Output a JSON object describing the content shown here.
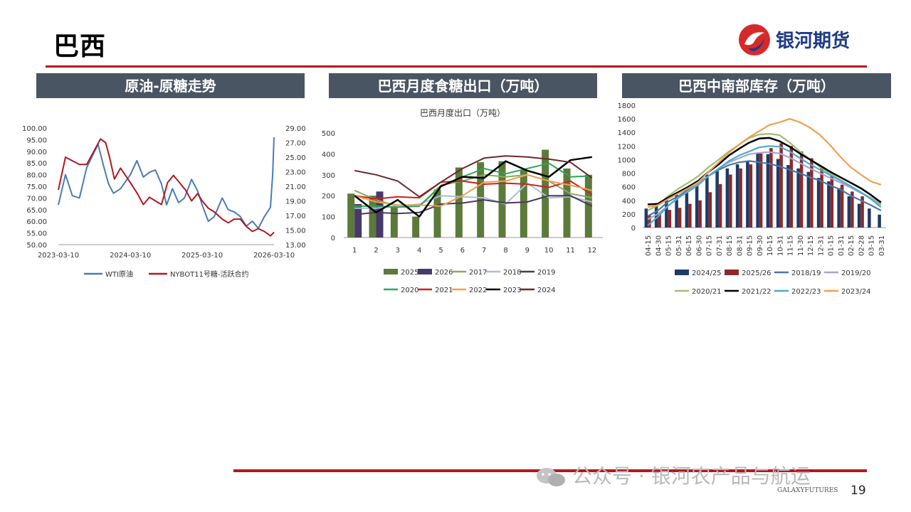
{
  "page": {
    "title": "巴西",
    "logo_text": "银河期货",
    "page_number": "19",
    "watermark": "公众号 · 银河农产品与航运",
    "footer_brand": "GALAXYFUTURES",
    "brand_red": "#b3171f",
    "header_gray": "#4a5563"
  },
  "panels": [
    {
      "heading": "原油-原糖走势"
    },
    {
      "heading": "巴西月度食糖出口（万吨）"
    },
    {
      "heading": "巴西中南部库存（万吨）"
    }
  ],
  "chart_data": [
    {
      "type": "line",
      "title": "",
      "x_ticks": [
        "2023-03-10",
        "2024-03-10",
        "2025-03-10",
        "2026-03-10"
      ],
      "x_domain": [
        "2023-03-10",
        "2026-03-10"
      ],
      "y_left": {
        "ylim": [
          50,
          100
        ],
        "ticks": [
          "100.00",
          "95.00",
          "90.00",
          "85.00",
          "80.00",
          "75.00",
          "70.00",
          "65.00",
          "60.00",
          "55.00",
          "50.00"
        ]
      },
      "y_right": {
        "ylim": [
          13,
          29
        ],
        "ticks": [
          "29.00",
          "27.00",
          "25.00",
          "23.00",
          "21.00",
          "19.00",
          "17.00",
          "15.00",
          "13.00"
        ]
      },
      "legend": "bottom",
      "series": [
        {
          "name": "WTI原油",
          "axis": "left",
          "color": "#4a7bb5",
          "x": [
            "2023-03-10",
            "2023-04-15",
            "2023-05-20",
            "2023-06-25",
            "2023-08-01",
            "2023-09-10",
            "2023-09-28",
            "2023-10-25",
            "2023-11-20",
            "2023-12-15",
            "2024-01-20",
            "2024-03-10",
            "2024-04-12",
            "2024-05-15",
            "2024-06-15",
            "2024-07-15",
            "2024-08-15",
            "2024-09-10",
            "2024-10-10",
            "2024-11-10",
            "2024-12-10",
            "2025-01-15",
            "2025-02-15",
            "2025-03-10",
            "2025-04-10",
            "2025-05-10",
            "2025-06-20",
            "2025-07-20",
            "2025-08-20",
            "2025-09-20",
            "2025-10-20",
            "2025-11-20",
            "2025-12-20",
            "2026-01-20",
            "2026-02-20",
            "2026-03-03",
            "2026-03-10"
          ],
          "y": [
            67,
            80,
            71,
            70,
            83,
            90,
            93,
            84,
            76,
            72,
            74,
            80,
            86,
            79,
            81,
            82,
            76,
            67,
            74,
            68,
            70,
            78,
            73,
            67,
            60,
            62,
            70,
            65,
            64,
            62,
            58,
            60,
            57,
            62,
            66,
            80,
            96
          ]
        },
        {
          "name": "NYBOT11号糖-活跃合约",
          "axis": "right",
          "color": "#b3171f",
          "x": [
            "2023-03-10",
            "2023-04-15",
            "2023-05-20",
            "2023-06-25",
            "2023-08-01",
            "2023-09-10",
            "2023-10-10",
            "2023-11-05",
            "2023-11-25",
            "2023-12-20",
            "2024-01-20",
            "2024-03-10",
            "2024-04-15",
            "2024-05-15",
            "2024-06-15",
            "2024-07-15",
            "2024-08-15",
            "2024-09-15",
            "2024-10-15",
            "2024-11-15",
            "2024-12-15",
            "2025-01-15",
            "2025-02-15",
            "2025-03-10",
            "2025-04-10",
            "2025-05-10",
            "2025-06-20",
            "2025-07-20",
            "2025-08-20",
            "2025-09-20",
            "2025-10-20",
            "2025-11-20",
            "2025-12-20",
            "2026-01-20",
            "2026-02-20",
            "2026-03-10"
          ],
          "y": [
            20.5,
            25,
            24.5,
            24,
            24,
            26,
            27.5,
            27,
            25,
            22,
            23.5,
            21.5,
            20,
            18.5,
            19.5,
            19,
            18.5,
            21.5,
            22.5,
            21.5,
            20.5,
            19,
            20,
            19,
            18,
            17.5,
            16.5,
            16,
            16.5,
            16.5,
            15.5,
            14.8,
            15.2,
            14.8,
            14.2,
            14.7
          ]
        }
      ]
    },
    {
      "type": "bar",
      "title": "巴西月度出口（万吨）",
      "categories": [
        "1",
        "2",
        "3",
        "4",
        "5",
        "6",
        "7",
        "8",
        "9",
        "10",
        "11",
        "12"
      ],
      "ylim": [
        0,
        500
      ],
      "y_ticks": [
        "500",
        "400",
        "300",
        "200",
        "100",
        "0"
      ],
      "legend": "bottom",
      "series": [
        {
          "name": "2025",
          "kind": "bar",
          "color": "#5c7a3a",
          "values": [
            210,
            200,
            150,
            100,
            230,
            335,
            360,
            365,
            325,
            420,
            330,
            300
          ]
        },
        {
          "name": "2026",
          "kind": "bar",
          "color": "#463a6a",
          "values": [
            160,
            220,
            null,
            null,
            null,
            null,
            null,
            null,
            null,
            null,
            null,
            null
          ]
        },
        {
          "name": "2017",
          "kind": "line",
          "color": "#8aaa60",
          "values": [
            225,
            180,
            150,
            150,
            250,
            270,
            300,
            290,
            300,
            270,
            210,
            190
          ]
        },
        {
          "name": "2018",
          "kind": "line",
          "color": "#a8c0d8",
          "values": [
            140,
            140,
            150,
            160,
            200,
            195,
            190,
            160,
            260,
            190,
            195,
            170
          ]
        },
        {
          "name": "2019",
          "kind": "line",
          "color": "#4a3a5e",
          "values": [
            110,
            120,
            115,
            120,
            160,
            165,
            180,
            165,
            170,
            200,
            200,
            150
          ]
        },
        {
          "name": "2020",
          "kind": "line",
          "color": "#2ca85a",
          "values": [
            150,
            150,
            145,
            150,
            245,
            290,
            330,
            305,
            330,
            355,
            290,
            295
          ]
        },
        {
          "name": "2021",
          "kind": "line",
          "color": "#d02020",
          "values": [
            200,
            185,
            195,
            190,
            265,
            270,
            255,
            260,
            255,
            240,
            270,
            205
          ]
        },
        {
          "name": "2022",
          "kind": "line",
          "color": "#f0a050",
          "values": [
            200,
            170,
            155,
            155,
            150,
            200,
            265,
            270,
            300,
            270,
            250,
            225
          ]
        },
        {
          "name": "2023",
          "kind": "line",
          "color": "#000000",
          "values": [
            200,
            120,
            180,
            100,
            245,
            290,
            285,
            365,
            320,
            290,
            370,
            385
          ]
        },
        {
          "name": "2024",
          "kind": "line",
          "color": "#6b2a2a",
          "values": [
            320,
            300,
            270,
            195,
            265,
            330,
            380,
            390,
            385,
            375,
            360,
            285
          ]
        }
      ]
    },
    {
      "type": "bar",
      "title": "",
      "categories": [
        "04-15",
        "04-30",
        "05-15",
        "05-31",
        "06-15",
        "06-30",
        "07-15",
        "07-31",
        "08-15",
        "08-31",
        "09-15",
        "09-30",
        "10-15",
        "10-31",
        "11-15",
        "11-30",
        "12-15",
        "12-31",
        "01-15",
        "01-31",
        "02-15",
        "02-28",
        "03-15",
        "03-31"
      ],
      "ylim": [
        0,
        1800
      ],
      "y_ticks": [
        "1800",
        "1600",
        "1400",
        "1200",
        "1000",
        "800",
        "600",
        "400",
        "200",
        "0"
      ],
      "legend": "bottom",
      "series": [
        {
          "name": "2024/25",
          "kind": "bar",
          "color": "#1f3a66",
          "values": [
            280,
            330,
            400,
            480,
            550,
            660,
            780,
            830,
            870,
            930,
            970,
            1100,
            1080,
            1010,
            920,
            870,
            820,
            730,
            680,
            580,
            460,
            350,
            280,
            190
          ]
        },
        {
          "name": "2025/26",
          "kind": "bar",
          "color": "#8b2a2a",
          "values": [
            180,
            210,
            260,
            290,
            350,
            400,
            520,
            640,
            780,
            870,
            930,
            1090,
            1170,
            1240,
            1200,
            1120,
            1020,
            880,
            780,
            630,
            530,
            460,
            null,
            null
          ]
        },
        {
          "name": "2018/19",
          "kind": "line",
          "color": "#4a78a8",
          "values": [
            170,
            250,
            380,
            460,
            560,
            660,
            760,
            850,
            920,
            960,
            980,
            960,
            940,
            900,
            850,
            800,
            740,
            690,
            620,
            560,
            470,
            400,
            330,
            250
          ]
        },
        {
          "name": "2019/20",
          "kind": "line",
          "color": "#b0a0cc",
          "values": [
            120,
            200,
            320,
            430,
            540,
            650,
            760,
            870,
            960,
            1020,
            1080,
            1100,
            1110,
            1090,
            1030,
            950,
            870,
            800,
            730,
            660,
            590,
            510,
            440,
            350
          ]
        },
        {
          "name": "2020/21",
          "kind": "line",
          "color": "#9cc070",
          "values": [
            250,
            330,
            460,
            570,
            660,
            760,
            890,
            1000,
            1120,
            1220,
            1320,
            1370,
            1380,
            1360,
            1250,
            1120,
            1000,
            890,
            790,
            700,
            610,
            520,
            430,
            330
          ]
        },
        {
          "name": "2021/22",
          "kind": "line",
          "color": "#000000",
          "values": [
            340,
            350,
            440,
            520,
            600,
            690,
            820,
            930,
            1060,
            1160,
            1250,
            1310,
            1320,
            1270,
            1190,
            1090,
            1000,
            910,
            820,
            740,
            660,
            580,
            480,
            370
          ]
        },
        {
          "name": "2022/23",
          "kind": "line",
          "color": "#4aaad0",
          "values": [
            30,
            160,
            320,
            440,
            530,
            630,
            760,
            870,
            980,
            1060,
            1120,
            1180,
            1200,
            1190,
            1120,
            1020,
            930,
            850,
            770,
            690,
            610,
            520,
            420,
            300
          ]
        },
        {
          "name": "2023/24",
          "kind": "line",
          "color": "#f0a050",
          "values": [
            300,
            330,
            420,
            500,
            580,
            670,
            820,
            960,
            1100,
            1220,
            1330,
            1420,
            1510,
            1550,
            1600,
            1550,
            1470,
            1360,
            1210,
            1040,
            890,
            780,
            680,
            630
          ]
        }
      ]
    }
  ]
}
